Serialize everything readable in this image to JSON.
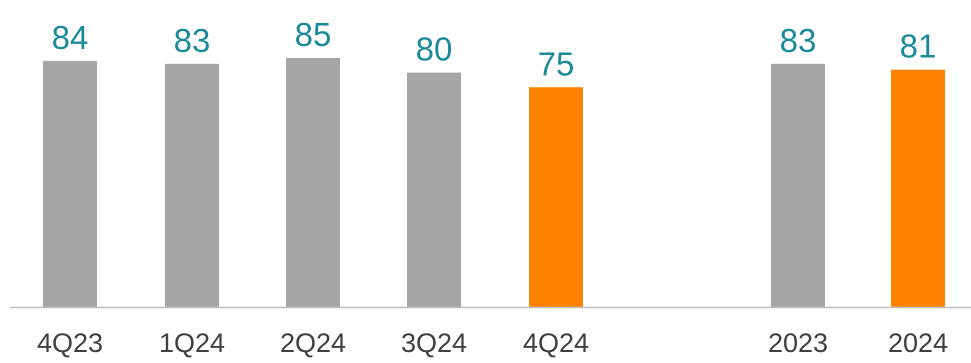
{
  "chart_data": {
    "type": "bar",
    "categories": [
      "4Q23",
      "1Q24",
      "2Q24",
      "3Q24",
      "4Q24",
      "2023",
      "2024"
    ],
    "values": [
      84,
      83,
      85,
      80,
      75,
      83,
      81
    ],
    "highlighted": [
      "4Q24",
      "2024"
    ],
    "title": "",
    "xlabel": "",
    "ylabel": "",
    "ylim": [
      0,
      100
    ],
    "grid": false,
    "data_labels": true
  },
  "colors": {
    "bar_default": "#a6a6a6",
    "bar_highlight": "#ff8200",
    "data_label": "#1b8a9a",
    "axis": "#bfbfbf"
  }
}
